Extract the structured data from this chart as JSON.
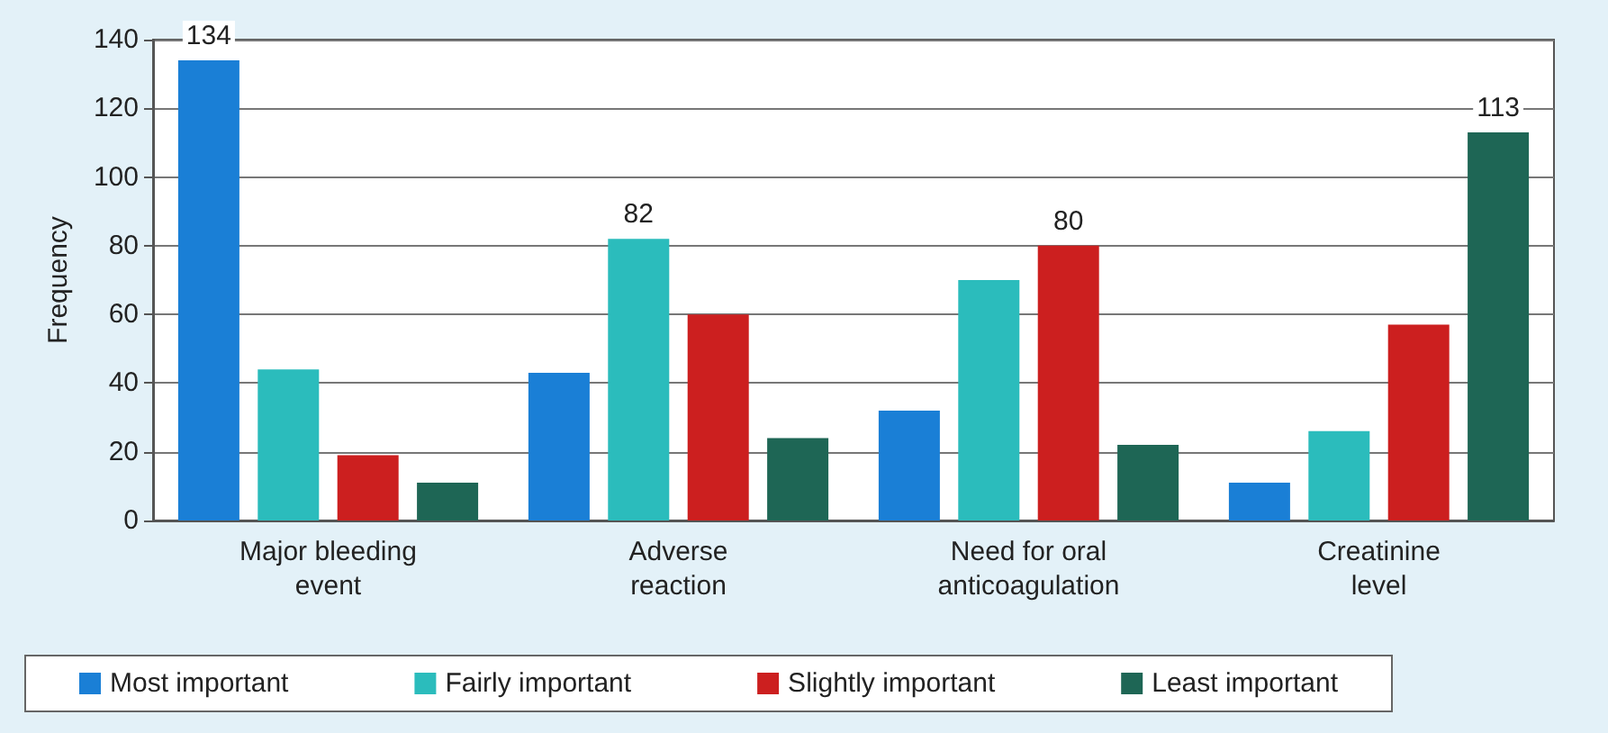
{
  "chart_data": {
    "type": "bar",
    "ylabel": "Frequency",
    "categories": [
      "Major bleeding\nevent",
      "Adverse\nreaction",
      "Need for oral\nanticoagulation",
      "Creatinine\nlevel"
    ],
    "series": [
      {
        "name": "Most important",
        "color": "#1a7fd6",
        "values": [
          134,
          43,
          32,
          11
        ],
        "value_labels": [
          "134",
          null,
          null,
          null
        ]
      },
      {
        "name": "Fairly important",
        "color": "#2bbcbc",
        "values": [
          44,
          82,
          70,
          26
        ],
        "value_labels": [
          null,
          "82",
          null,
          null
        ]
      },
      {
        "name": "Slightly important",
        "color": "#cc1f1f",
        "values": [
          19,
          60,
          80,
          57
        ],
        "value_labels": [
          null,
          null,
          "80",
          null
        ]
      },
      {
        "name": "Least important",
        "color": "#1e6655",
        "values": [
          11,
          24,
          22,
          113
        ],
        "value_labels": [
          null,
          null,
          null,
          "113"
        ]
      }
    ],
    "ylim": [
      0,
      140
    ],
    "yticks": [
      0,
      20,
      40,
      60,
      80,
      100,
      120,
      140
    ],
    "grid": "y",
    "legend": "bottom"
  }
}
